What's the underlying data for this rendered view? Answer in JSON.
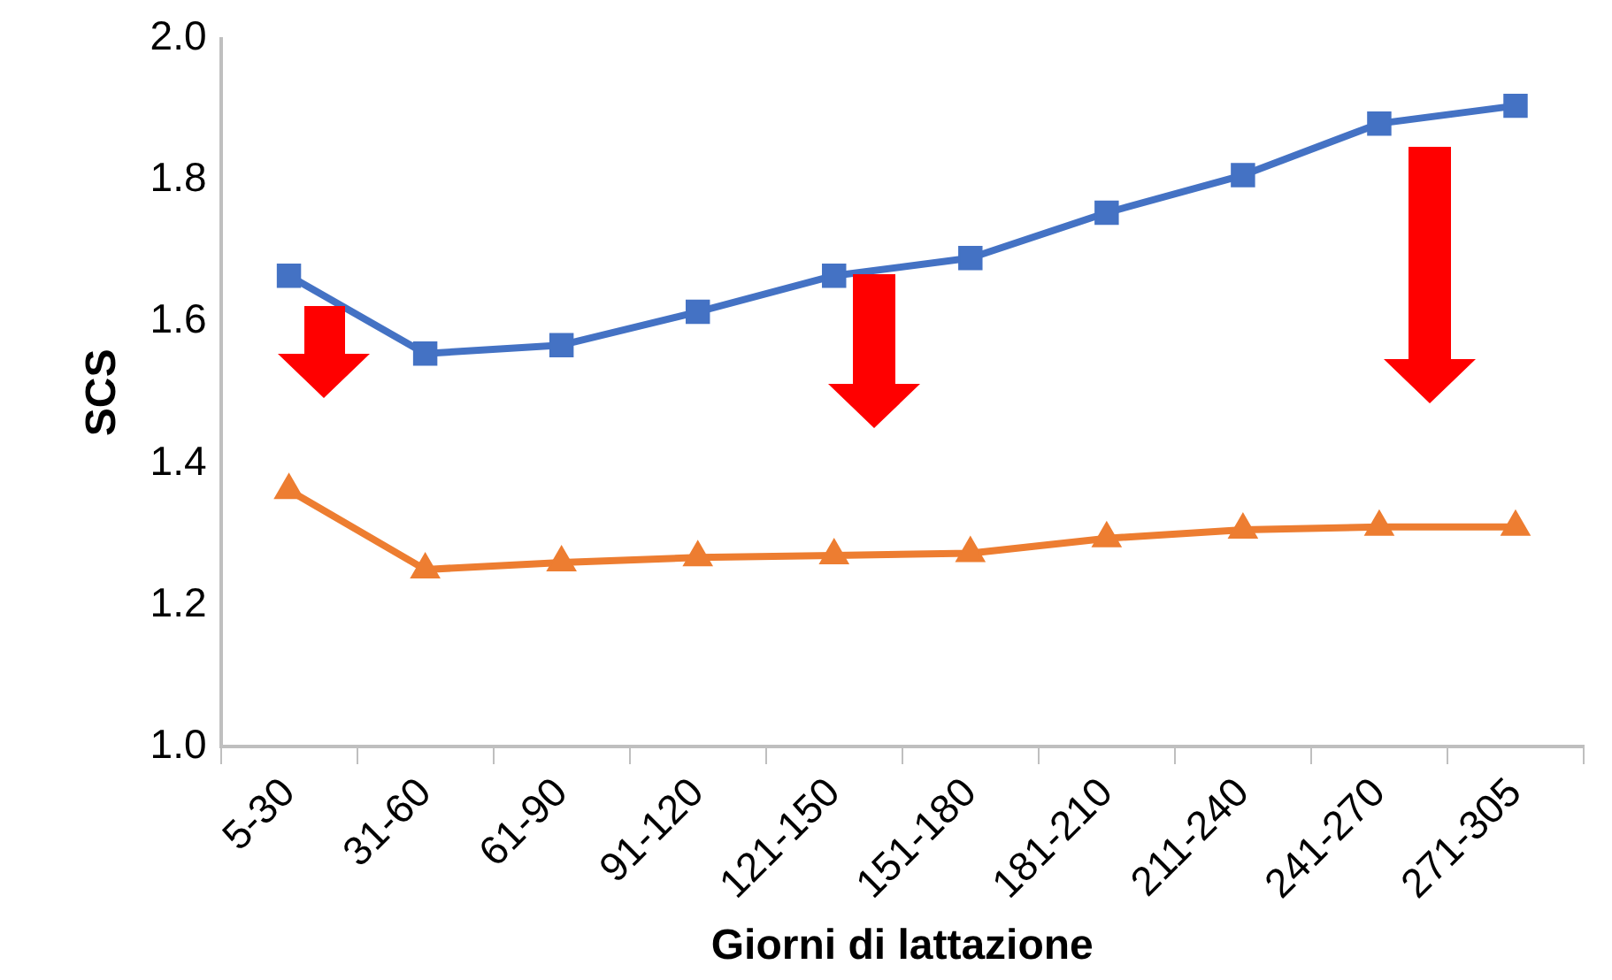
{
  "chart_data": {
    "type": "line",
    "xlabel": "Giorni di lattazione",
    "ylabel": "SCS",
    "categories": [
      "5-30",
      "31-60",
      "61-90",
      "91-120",
      "121-150",
      "151-180",
      "181-210",
      "211-240",
      "241-270",
      "271-305"
    ],
    "series": [
      {
        "color": "#4472c4",
        "marker": "square",
        "values": [
          1.665,
          1.555,
          1.567,
          1.614,
          1.665,
          1.69,
          1.754,
          1.807,
          1.88,
          1.905
        ]
      },
      {
        "color": "#ed7d31",
        "marker": "triangle",
        "values": [
          1.362,
          1.25,
          1.26,
          1.267,
          1.27,
          1.273,
          1.294,
          1.306,
          1.31,
          1.31
        ]
      }
    ],
    "ylim": [
      1.0,
      2.0
    ],
    "yticks": [
      {
        "value": 1.0,
        "label": "1.0"
      },
      {
        "value": 1.2,
        "label": "1.2"
      },
      {
        "value": 1.4,
        "label": "1.4"
      },
      {
        "value": 1.6,
        "label": "1.6"
      },
      {
        "value": 1.8,
        "label": "1.8"
      },
      {
        "value": 2.0,
        "label": "2.0"
      }
    ],
    "grid": false,
    "legend": false,
    "line_style": "solid"
  }
}
